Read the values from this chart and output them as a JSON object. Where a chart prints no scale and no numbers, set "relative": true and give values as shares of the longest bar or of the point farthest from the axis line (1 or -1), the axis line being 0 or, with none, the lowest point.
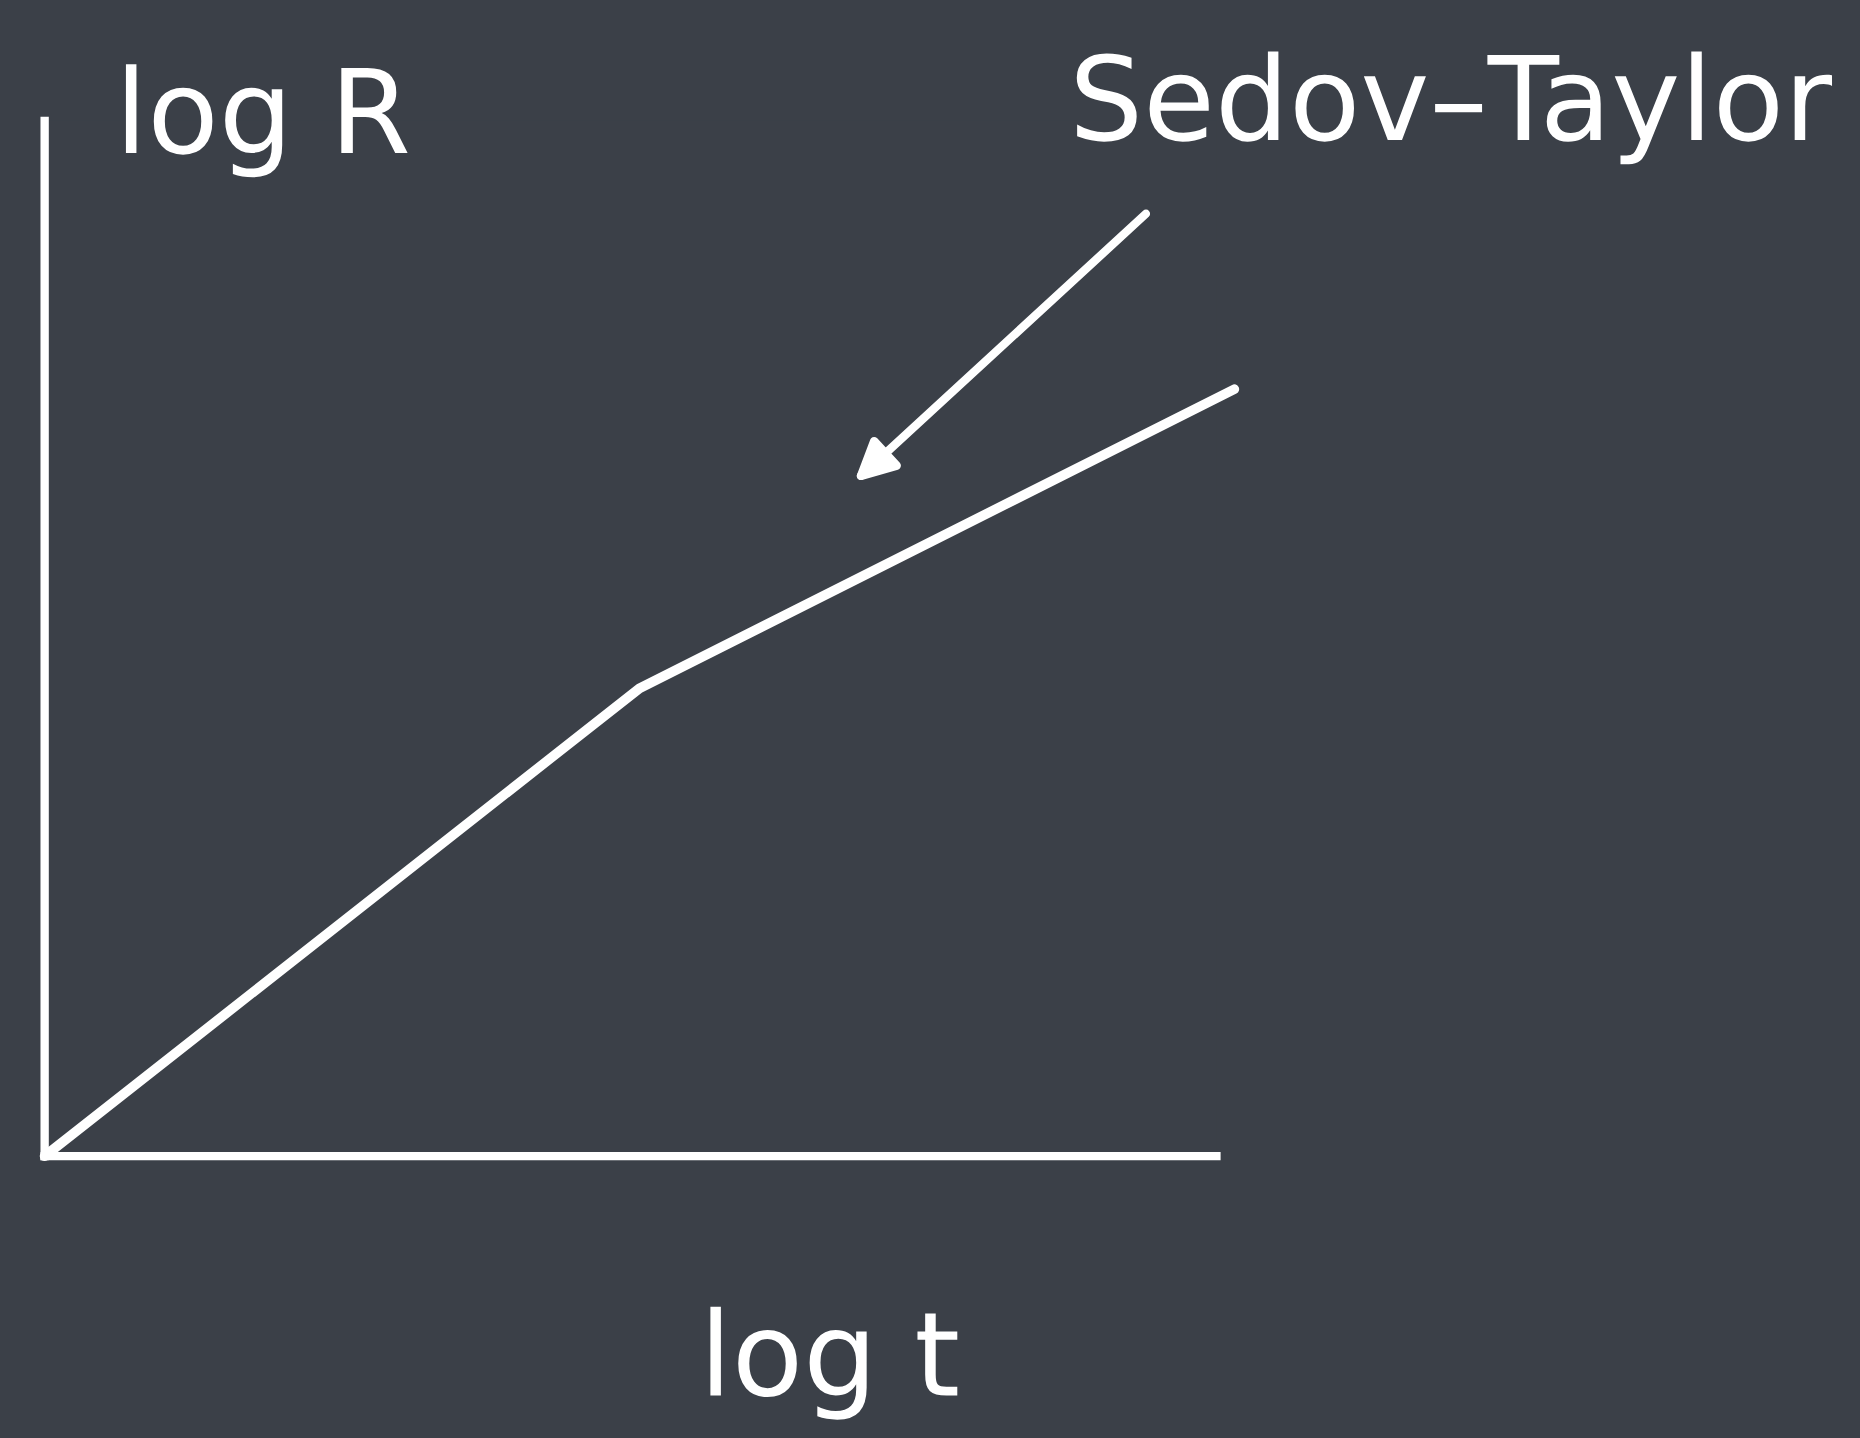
{
  "chart_data": {
    "type": "line",
    "relative": true,
    "xlabel": "log t",
    "ylabel": "log R",
    "categories": [
      null,
      null,
      null
    ],
    "series": [
      {
        "color": "#ffffff",
        "values": [
          0,
          0.61,
          1
        ]
      }
    ],
    "annotations": [
      "Sedov–Taylor"
    ],
    "grid": false,
    "marker": "none",
    "line_style": "solid"
  }
}
